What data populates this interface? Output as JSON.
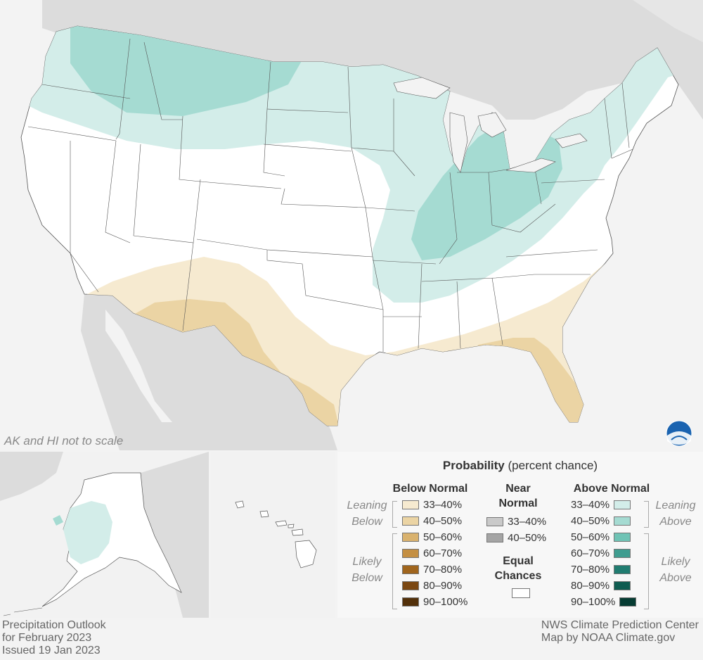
{
  "map_note": "AK and HI not to scale",
  "legend": {
    "title_bold": "Probability",
    "title_rest": "(percent chance)",
    "below": {
      "header": "Below Normal",
      "leaning_label": [
        "Leaning",
        "Below"
      ],
      "likely_label": [
        "Likely",
        "Below"
      ],
      "items": [
        {
          "label": "33–40%",
          "color": "#f6ead0"
        },
        {
          "label": "40–50%",
          "color": "#ebd4a4"
        },
        {
          "label": "50–60%",
          "color": "#d9b26e"
        },
        {
          "label": "60–70%",
          "color": "#c48f42"
        },
        {
          "label": "70–80%",
          "color": "#a0651d"
        },
        {
          "label": "80–90%",
          "color": "#7a4712"
        },
        {
          "label": "90–100%",
          "color": "#52300a"
        }
      ]
    },
    "near": {
      "header": [
        "Near",
        "Normal"
      ],
      "items": [
        {
          "label": "33–40%",
          "color": "#c9c9c9"
        },
        {
          "label": "40–50%",
          "color": "#a4a4a4"
        }
      ],
      "equal_header": [
        "Equal",
        "Chances"
      ],
      "equal_color": "#ffffff"
    },
    "above": {
      "header": "Above Normal",
      "leaning_label": [
        "Leaning",
        "Above"
      ],
      "likely_label": [
        "Likely",
        "Above"
      ],
      "items": [
        {
          "label": "33–40%",
          "color": "#d3ede9"
        },
        {
          "label": "40–50%",
          "color": "#a5dbd2"
        },
        {
          "label": "50–60%",
          "color": "#6fc3b5"
        },
        {
          "label": "60–70%",
          "color": "#3f9d90"
        },
        {
          "label": "70–80%",
          "color": "#207c70"
        },
        {
          "label": "80–90%",
          "color": "#0f5c51"
        },
        {
          "label": "90–100%",
          "color": "#063c33"
        }
      ]
    }
  },
  "footer": {
    "left": [
      "Precipitation Outlook",
      "for February 2023",
      "Issued 19 Jan 2023"
    ],
    "right": [
      "NWS Climate Prediction Center",
      "Map by NOAA Climate.gov"
    ]
  },
  "logo_text": "NOAA",
  "colors": {
    "background": "#e8e8e8",
    "us_land": "#ffffff",
    "neighbor_land": "#dadada",
    "water": "#f3f3f3"
  }
}
